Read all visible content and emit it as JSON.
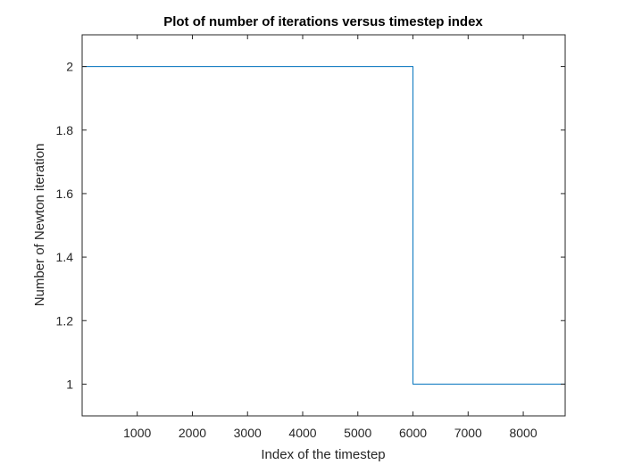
{
  "chart_data": {
    "type": "line",
    "title": "Plot of number of iterations versus timestep index",
    "xlabel": "Index of the timestep",
    "ylabel": "Number of Newton iteration",
    "xlim": [
      1,
      8760
    ],
    "ylim": [
      0.9,
      2.1
    ],
    "xticks": [
      1000,
      2000,
      3000,
      4000,
      5000,
      6000,
      7000,
      8000
    ],
    "xtick_labels": [
      "1000",
      "2000",
      "3000",
      "4000",
      "5000",
      "6000",
      "7000",
      "8000"
    ],
    "yticks": [
      1,
      1.2,
      1.4,
      1.6,
      1.8,
      2
    ],
    "ytick_labels": [
      "1",
      "1.2",
      "1.4",
      "1.6",
      "1.8",
      "2"
    ],
    "grid": false,
    "box": true,
    "series": [
      {
        "color": "#0072BD",
        "x": [
          1,
          6000,
          6000,
          8760
        ],
        "y": [
          2,
          2,
          1,
          1
        ]
      }
    ]
  }
}
